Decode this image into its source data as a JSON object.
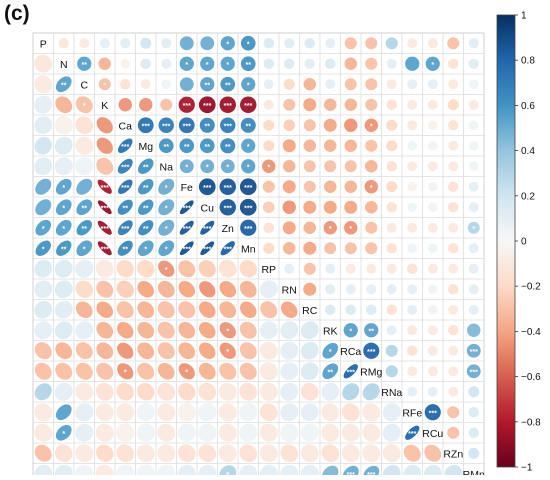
{
  "panel_label": "(c)",
  "chart_data": {
    "type": "heatmap",
    "variables": [
      "P",
      "N",
      "C",
      "K",
      "Ca",
      "Mg",
      "Na",
      "Fe",
      "Cu",
      "Zn",
      "Mn",
      "RP",
      "RN",
      "RC",
      "RK",
      "RCa",
      "RMg",
      "RNa",
      "RFe",
      "RCu",
      "RZn",
      "RMn"
    ],
    "layout": "mixed: lower triangle ellipses, upper triangle circles, variable names on diagonal",
    "colorbar": {
      "ticks": [
        1,
        0.8,
        0.6,
        0.4,
        0.2,
        0,
        -0.2,
        -0.4,
        -0.6,
        -0.8,
        -1
      ],
      "tick_labels": [
        "1",
        "0.8",
        "0.6",
        "0.4",
        "0.2",
        "0",
        "−0.2",
        "−0.4",
        "−0.6",
        "−0.8",
        "−1"
      ],
      "range": [
        -1,
        1
      ],
      "colors": [
        "#67001f",
        "#b2182b",
        "#d6604d",
        "#f4a582",
        "#fddbc7",
        "#f7f7f7",
        "#d1e5f0",
        "#92c5de",
        "#4393c3",
        "#2166ac",
        "#053061"
      ]
    },
    "significance_marks": [
      "*",
      "**",
      "***"
    ],
    "correlations": [
      {
        "r": "N",
        "c": "P",
        "v": -0.12
      },
      {
        "r": "C",
        "c": "P",
        "v": -0.1
      },
      {
        "r": "C",
        "c": "N",
        "v": 0.55,
        "s": "**"
      },
      {
        "r": "K",
        "c": "P",
        "v": 0.1
      },
      {
        "r": "K",
        "c": "N",
        "v": -0.35
      },
      {
        "r": "K",
        "c": "C",
        "v": -0.3,
        "s": "*"
      },
      {
        "r": "Ca",
        "c": "P",
        "v": 0.12
      },
      {
        "r": "Ca",
        "c": "N",
        "v": -0.05
      },
      {
        "r": "Ca",
        "c": "C",
        "v": -0.15
      },
      {
        "r": "Ca",
        "c": "K",
        "v": -0.45
      },
      {
        "r": "Mg",
        "c": "P",
        "v": 0.2
      },
      {
        "r": "Mg",
        "c": "N",
        "v": 0.15
      },
      {
        "r": "Mg",
        "c": "C",
        "v": -0.1
      },
      {
        "r": "Mg",
        "c": "K",
        "v": -0.45
      },
      {
        "r": "Mg",
        "c": "Ca",
        "v": 0.75,
        "s": "***"
      },
      {
        "r": "Na",
        "c": "P",
        "v": 0.12
      },
      {
        "r": "Na",
        "c": "N",
        "v": 0.1
      },
      {
        "r": "Na",
        "c": "C",
        "v": 0.05
      },
      {
        "r": "Na",
        "c": "K",
        "v": -0.3
      },
      {
        "r": "Na",
        "c": "Ca",
        "v": 0.7,
        "s": "***"
      },
      {
        "r": "Na",
        "c": "Mg",
        "v": 0.6,
        "s": "**"
      },
      {
        "r": "Fe",
        "c": "P",
        "v": 0.5
      },
      {
        "r": "Fe",
        "c": "N",
        "v": 0.55,
        "s": "*"
      },
      {
        "r": "Fe",
        "c": "C",
        "v": 0.5
      },
      {
        "r": "Fe",
        "c": "K",
        "v": -0.82,
        "s": "***"
      },
      {
        "r": "Fe",
        "c": "Ca",
        "v": 0.75,
        "s": "***"
      },
      {
        "r": "Fe",
        "c": "Mg",
        "v": 0.6,
        "s": "**"
      },
      {
        "r": "Fe",
        "c": "Na",
        "v": 0.5,
        "s": "*"
      },
      {
        "r": "Cu",
        "c": "P",
        "v": 0.5
      },
      {
        "r": "Cu",
        "c": "N",
        "v": 0.55,
        "s": "*"
      },
      {
        "r": "Cu",
        "c": "C",
        "v": 0.55,
        "s": "**"
      },
      {
        "r": "Cu",
        "c": "K",
        "v": -0.88,
        "s": "***"
      },
      {
        "r": "Cu",
        "c": "Ca",
        "v": 0.65,
        "s": "**"
      },
      {
        "r": "Cu",
        "c": "Mg",
        "v": 0.6,
        "s": "**"
      },
      {
        "r": "Cu",
        "c": "Na",
        "v": 0.5,
        "s": "*"
      },
      {
        "r": "Cu",
        "c": "Fe",
        "v": 0.88,
        "s": "***"
      },
      {
        "r": "Zn",
        "c": "P",
        "v": 0.55,
        "s": "*"
      },
      {
        "r": "Zn",
        "c": "N",
        "v": 0.55,
        "s": "*"
      },
      {
        "r": "Zn",
        "c": "C",
        "v": 0.6,
        "s": "**"
      },
      {
        "r": "Zn",
        "c": "K",
        "v": -0.85,
        "s": "***"
      },
      {
        "r": "Zn",
        "c": "Ca",
        "v": 0.7,
        "s": "***"
      },
      {
        "r": "Zn",
        "c": "Mg",
        "v": 0.65,
        "s": "**"
      },
      {
        "r": "Zn",
        "c": "Na",
        "v": 0.5,
        "s": "*"
      },
      {
        "r": "Zn",
        "c": "Fe",
        "v": 0.85,
        "s": "***"
      },
      {
        "r": "Zn",
        "c": "Cu",
        "v": 0.85,
        "s": "***"
      },
      {
        "r": "Mn",
        "c": "P",
        "v": 0.6,
        "s": "*"
      },
      {
        "r": "Mn",
        "c": "N",
        "v": 0.6,
        "s": "**"
      },
      {
        "r": "Mn",
        "c": "C",
        "v": 0.55,
        "s": "*"
      },
      {
        "r": "Mn",
        "c": "K",
        "v": -0.85,
        "s": "***"
      },
      {
        "r": "Mn",
        "c": "Ca",
        "v": 0.65,
        "s": "**"
      },
      {
        "r": "Mn",
        "c": "Mg",
        "v": 0.55,
        "s": "*"
      },
      {
        "r": "Mn",
        "c": "Na",
        "v": 0.55,
        "s": "*"
      },
      {
        "r": "Mn",
        "c": "Fe",
        "v": 0.88,
        "s": "***"
      },
      {
        "r": "Mn",
        "c": "Cu",
        "v": 0.88,
        "s": "***"
      },
      {
        "r": "Mn",
        "c": "Zn",
        "v": 0.82,
        "s": "***"
      },
      {
        "r": "RP",
        "c": "P",
        "v": 0.15
      },
      {
        "r": "RP",
        "c": "N",
        "v": 0.15
      },
      {
        "r": "RP",
        "c": "C",
        "v": 0.1
      },
      {
        "r": "RP",
        "c": "K",
        "v": -0.1
      },
      {
        "r": "RP",
        "c": "Ca",
        "v": -0.2
      },
      {
        "r": "RP",
        "c": "Mg",
        "v": -0.2
      },
      {
        "r": "RP",
        "c": "Na",
        "v": -0.45,
        "s": "*"
      },
      {
        "r": "RP",
        "c": "Fe",
        "v": -0.3
      },
      {
        "r": "RP",
        "c": "Cu",
        "v": -0.25
      },
      {
        "r": "RP",
        "c": "Zn",
        "v": -0.15
      },
      {
        "r": "RP",
        "c": "Mn",
        "v": -0.2
      },
      {
        "r": "RN",
        "c": "P",
        "v": 0.12
      },
      {
        "r": "RN",
        "c": "N",
        "v": 0.15
      },
      {
        "r": "RN",
        "c": "C",
        "v": -0.2
      },
      {
        "r": "RN",
        "c": "K",
        "v": -0.3
      },
      {
        "r": "RN",
        "c": "Ca",
        "v": -0.25
      },
      {
        "r": "RN",
        "c": "Mg",
        "v": -0.4
      },
      {
        "r": "RN",
        "c": "Na",
        "v": -0.35
      },
      {
        "r": "RN",
        "c": "Fe",
        "v": -0.4
      },
      {
        "r": "RN",
        "c": "Cu",
        "v": -0.45
      },
      {
        "r": "RN",
        "c": "Zn",
        "v": -0.4
      },
      {
        "r": "RN",
        "c": "Mn",
        "v": -0.35
      },
      {
        "r": "RN",
        "c": "RP",
        "v": 0.1
      },
      {
        "r": "RC",
        "c": "P",
        "v": 0.15
      },
      {
        "r": "RC",
        "c": "N",
        "v": 0.12
      },
      {
        "r": "RC",
        "c": "C",
        "v": -0.35
      },
      {
        "r": "RC",
        "c": "K",
        "v": -0.4
      },
      {
        "r": "RC",
        "c": "Ca",
        "v": -0.3
      },
      {
        "r": "RC",
        "c": "Mg",
        "v": -0.35
      },
      {
        "r": "RC",
        "c": "Na",
        "v": -0.3
      },
      {
        "r": "RC",
        "c": "Fe",
        "v": -0.3
      },
      {
        "r": "RC",
        "c": "Cu",
        "v": -0.4
      },
      {
        "r": "RC",
        "c": "Zn",
        "v": -0.35
      },
      {
        "r": "RC",
        "c": "Mn",
        "v": -0.4
      },
      {
        "r": "RC",
        "c": "RP",
        "v": -0.3
      },
      {
        "r": "RC",
        "c": "RN",
        "v": -0.4
      },
      {
        "r": "RK",
        "c": "P",
        "v": 0.1
      },
      {
        "r": "RK",
        "c": "N",
        "v": 0.15
      },
      {
        "r": "RK",
        "c": "C",
        "v": 0.1
      },
      {
        "r": "RK",
        "c": "K",
        "v": -0.35
      },
      {
        "r": "RK",
        "c": "Ca",
        "v": -0.4
      },
      {
        "r": "RK",
        "c": "Mg",
        "v": -0.35
      },
      {
        "r": "RK",
        "c": "Na",
        "v": -0.3
      },
      {
        "r": "RK",
        "c": "Fe",
        "v": -0.35
      },
      {
        "r": "RK",
        "c": "Cu",
        "v": -0.4
      },
      {
        "r": "RK",
        "c": "Zn",
        "v": -0.45,
        "s": "*"
      },
      {
        "r": "RK",
        "c": "Mn",
        "v": -0.3
      },
      {
        "r": "RK",
        "c": "RP",
        "v": 0.1
      },
      {
        "r": "RK",
        "c": "RN",
        "v": 0.12
      },
      {
        "r": "RK",
        "c": "RC",
        "v": 0.15
      },
      {
        "r": "RCa",
        "c": "P",
        "v": -0.3
      },
      {
        "r": "RCa",
        "c": "N",
        "v": -0.35
      },
      {
        "r": "RCa",
        "c": "C",
        "v": -0.3
      },
      {
        "r": "RCa",
        "c": "K",
        "v": -0.35
      },
      {
        "r": "RCa",
        "c": "Ca",
        "v": -0.45
      },
      {
        "r": "RCa",
        "c": "Mg",
        "v": -0.35
      },
      {
        "r": "RCa",
        "c": "Na",
        "v": -0.3
      },
      {
        "r": "RCa",
        "c": "Fe",
        "v": -0.35
      },
      {
        "r": "RCa",
        "c": "Cu",
        "v": -0.4
      },
      {
        "r": "RCa",
        "c": "Zn",
        "v": -0.45,
        "s": "*"
      },
      {
        "r": "RCa",
        "c": "Mn",
        "v": -0.3
      },
      {
        "r": "RCa",
        "c": "RP",
        "v": -0.1
      },
      {
        "r": "RCa",
        "c": "RN",
        "v": 0.1
      },
      {
        "r": "RCa",
        "c": "RC",
        "v": 0.15
      },
      {
        "r": "RCa",
        "c": "RK",
        "v": 0.55,
        "s": "*"
      },
      {
        "r": "RMg",
        "c": "P",
        "v": -0.3
      },
      {
        "r": "RMg",
        "c": "N",
        "v": -0.3
      },
      {
        "r": "RMg",
        "c": "C",
        "v": -0.3
      },
      {
        "r": "RMg",
        "c": "K",
        "v": -0.3
      },
      {
        "r": "RMg",
        "c": "Ca",
        "v": -0.45,
        "s": "*"
      },
      {
        "r": "RMg",
        "c": "Mg",
        "v": -0.3
      },
      {
        "r": "RMg",
        "c": "Na",
        "v": -0.35
      },
      {
        "r": "RMg",
        "c": "Fe",
        "v": -0.45,
        "s": "*"
      },
      {
        "r": "RMg",
        "c": "Cu",
        "v": -0.35
      },
      {
        "r": "RMg",
        "c": "Zn",
        "v": -0.3
      },
      {
        "r": "RMg",
        "c": "Mn",
        "v": -0.3
      },
      {
        "r": "RMg",
        "c": "RP",
        "v": -0.1
      },
      {
        "r": "RMg",
        "c": "RN",
        "v": 0.1
      },
      {
        "r": "RMg",
        "c": "RC",
        "v": 0.15
      },
      {
        "r": "RMg",
        "c": "RK",
        "v": 0.55,
        "s": "**"
      },
      {
        "r": "RMg",
        "c": "RCa",
        "v": 0.8,
        "s": "***"
      },
      {
        "r": "RNa",
        "c": "P",
        "v": 0.3
      },
      {
        "r": "RNa",
        "c": "N",
        "v": 0.1
      },
      {
        "r": "RNa",
        "c": "C",
        "v": -0.1
      },
      {
        "r": "RNa",
        "c": "K",
        "v": -0.15
      },
      {
        "r": "RNa",
        "c": "Ca",
        "v": -0.2
      },
      {
        "r": "RNa",
        "c": "Mg",
        "v": -0.2
      },
      {
        "r": "RNa",
        "c": "Na",
        "v": -0.15
      },
      {
        "r": "RNa",
        "c": "Fe",
        "v": -0.2
      },
      {
        "r": "RNa",
        "c": "Cu",
        "v": -0.15
      },
      {
        "r": "RNa",
        "c": "Zn",
        "v": -0.1
      },
      {
        "r": "RNa",
        "c": "Mn",
        "v": -0.15
      },
      {
        "r": "RNa",
        "c": "RP",
        "v": -0.1
      },
      {
        "r": "RNa",
        "c": "RN",
        "v": 0.1
      },
      {
        "r": "RNa",
        "c": "RC",
        "v": -0.15
      },
      {
        "r": "RNa",
        "c": "RK",
        "v": 0.1
      },
      {
        "r": "RNa",
        "c": "RCa",
        "v": 0.3
      },
      {
        "r": "RNa",
        "c": "RMg",
        "v": 0.3
      },
      {
        "r": "RFe",
        "c": "P",
        "v": -0.1
      },
      {
        "r": "RFe",
        "c": "N",
        "v": 0.55
      },
      {
        "r": "RFe",
        "c": "C",
        "v": 0.1
      },
      {
        "r": "RFe",
        "c": "K",
        "v": -0.1
      },
      {
        "r": "RFe",
        "c": "Ca",
        "v": -0.1
      },
      {
        "r": "RFe",
        "c": "Mg",
        "v": 0.05
      },
      {
        "r": "RFe",
        "c": "Na",
        "v": -0.1
      },
      {
        "r": "RFe",
        "c": "Fe",
        "v": -0.05
      },
      {
        "r": "RFe",
        "c": "Cu",
        "v": 0.05
      },
      {
        "r": "RFe",
        "c": "Zn",
        "v": -0.1
      },
      {
        "r": "RFe",
        "c": "Mn",
        "v": 0.05
      },
      {
        "r": "RFe",
        "c": "RP",
        "v": -0.15
      },
      {
        "r": "RFe",
        "c": "RN",
        "v": 0.1
      },
      {
        "r": "RFe",
        "c": "RC",
        "v": 0.1
      },
      {
        "r": "RFe",
        "c": "RK",
        "v": -0.1
      },
      {
        "r": "RFe",
        "c": "RCa",
        "v": -0.15
      },
      {
        "r": "RFe",
        "c": "RMg",
        "v": -0.1
      },
      {
        "r": "RFe",
        "c": "RNa",
        "v": 0.1
      },
      {
        "r": "RCu",
        "c": "P",
        "v": -0.1
      },
      {
        "r": "RCu",
        "c": "N",
        "v": 0.55,
        "s": "*"
      },
      {
        "r": "RCu",
        "c": "C",
        "v": 0.1
      },
      {
        "r": "RCu",
        "c": "K",
        "v": -0.1
      },
      {
        "r": "RCu",
        "c": "Ca",
        "v": -0.05
      },
      {
        "r": "RCu",
        "c": "Mg",
        "v": 0.05
      },
      {
        "r": "RCu",
        "c": "Na",
        "v": -0.1
      },
      {
        "r": "RCu",
        "c": "Fe",
        "v": 0.05
      },
      {
        "r": "RCu",
        "c": "Cu",
        "v": 0.05
      },
      {
        "r": "RCu",
        "c": "Zn",
        "v": -0.1
      },
      {
        "r": "RCu",
        "c": "Mn",
        "v": 0.05
      },
      {
        "r": "RCu",
        "c": "RP",
        "v": -0.1
      },
      {
        "r": "RCu",
        "c": "RN",
        "v": 0.05
      },
      {
        "r": "RCu",
        "c": "RC",
        "v": 0.05
      },
      {
        "r": "RCu",
        "c": "RK",
        "v": -0.1
      },
      {
        "r": "RCu",
        "c": "RCa",
        "v": -0.1
      },
      {
        "r": "RCu",
        "c": "RMg",
        "v": -0.1
      },
      {
        "r": "RCu",
        "c": "RNa",
        "v": 0.1
      },
      {
        "r": "RCu",
        "c": "RFe",
        "v": 0.8,
        "s": "***"
      },
      {
        "r": "RZn",
        "c": "P",
        "v": -0.3
      },
      {
        "r": "RZn",
        "c": "N",
        "v": -0.15
      },
      {
        "r": "RZn",
        "c": "C",
        "v": -0.1
      },
      {
        "r": "RZn",
        "c": "K",
        "v": -0.2
      },
      {
        "r": "RZn",
        "c": "Ca",
        "v": -0.15
      },
      {
        "r": "RZn",
        "c": "Mg",
        "v": -0.1
      },
      {
        "r": "RZn",
        "c": "Na",
        "v": -0.1
      },
      {
        "r": "RZn",
        "c": "Fe",
        "v": -0.15
      },
      {
        "r": "RZn",
        "c": "Cu",
        "v": -0.15
      },
      {
        "r": "RZn",
        "c": "Zn",
        "v": -0.1
      },
      {
        "r": "RZn",
        "c": "Mn",
        "v": -0.15
      },
      {
        "r": "RZn",
        "c": "RP",
        "v": -0.1
      },
      {
        "r": "RZn",
        "c": "RN",
        "v": -0.15
      },
      {
        "r": "RZn",
        "c": "RC",
        "v": -0.1
      },
      {
        "r": "RZn",
        "c": "RK",
        "v": -0.15
      },
      {
        "r": "RZn",
        "c": "RCa",
        "v": -0.1
      },
      {
        "r": "RZn",
        "c": "RMg",
        "v": -0.1
      },
      {
        "r": "RZn",
        "c": "RNa",
        "v": -0.1
      },
      {
        "r": "RZn",
        "c": "RFe",
        "v": -0.3
      },
      {
        "r": "RZn",
        "c": "RCu",
        "v": -0.3
      },
      {
        "r": "RMn",
        "c": "P",
        "v": 0.12
      },
      {
        "r": "RMn",
        "c": "N",
        "v": 0.12
      },
      {
        "r": "RMn",
        "c": "C",
        "v": 0.05
      },
      {
        "r": "RMn",
        "c": "K",
        "v": -0.1
      },
      {
        "r": "RMn",
        "c": "Ca",
        "v": 0.05
      },
      {
        "r": "RMn",
        "c": "Mg",
        "v": 0.05
      },
      {
        "r": "RMn",
        "c": "Na",
        "v": 0.05
      },
      {
        "r": "RMn",
        "c": "Fe",
        "v": 0.1
      },
      {
        "r": "RMn",
        "c": "Cu",
        "v": 0.1
      },
      {
        "r": "RMn",
        "c": "Zn",
        "v": 0.3,
        "s": "*"
      },
      {
        "r": "RMn",
        "c": "Mn",
        "v": 0.1
      },
      {
        "r": "RMn",
        "c": "RP",
        "v": 0.1
      },
      {
        "r": "RMn",
        "c": "RN",
        "v": 0.1
      },
      {
        "r": "RMn",
        "c": "RC",
        "v": 0.1
      },
      {
        "r": "RMn",
        "c": "RK",
        "v": 0.45
      },
      {
        "r": "RMn",
        "c": "RCa",
        "v": 0.5,
        "s": "***"
      },
      {
        "r": "RMn",
        "c": "RMg",
        "v": 0.5,
        "s": "***"
      },
      {
        "r": "RMn",
        "c": "RNa",
        "v": 0.2
      },
      {
        "r": "RMn",
        "c": "RFe",
        "v": 0.15
      },
      {
        "r": "RMn",
        "c": "RCu",
        "v": 0.15
      },
      {
        "r": "RMn",
        "c": "RZn",
        "v": 0.2
      }
    ]
  }
}
